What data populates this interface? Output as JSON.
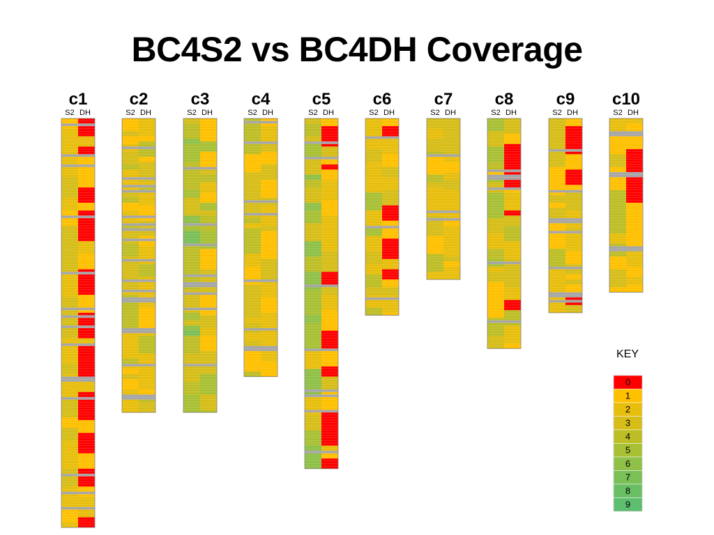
{
  "title": "BC4S2 vs BC4DH Coverage",
  "chart_data": {
    "type": "heatmap",
    "title": "BC4S2 vs BC4DH Coverage",
    "column_labels": [
      "S2",
      "DH"
    ],
    "missing_color": "#a6a6a6",
    "chromosomes": [
      {
        "name": "c1",
        "seed": 11,
        "rows": 160,
        "s2": [
          2,
          1,
          3,
          2
        ],
        "dh": [
          0,
          0,
          0,
          1,
          2,
          1,
          3
        ],
        "zero_prob": 0.15,
        "gap_prob": 0.1
      },
      {
        "name": "c2",
        "seed": 23,
        "rows": 115,
        "s2": [
          2,
          1,
          3,
          2,
          4
        ],
        "dh": [
          2,
          1,
          3,
          2,
          4
        ],
        "zero_prob": 0.02,
        "gap_prob": 0.08
      },
      {
        "name": "c3",
        "seed": 37,
        "rows": 115,
        "s2": [
          5,
          4,
          6,
          3,
          7
        ],
        "dh": [
          1,
          2,
          3,
          4,
          5
        ],
        "zero_prob": 0.0,
        "gap_prob": 0.07
      },
      {
        "name": "c4",
        "seed": 41,
        "rows": 101,
        "s2": [
          2,
          1,
          3,
          4
        ],
        "dh": [
          1,
          2,
          1,
          3
        ],
        "zero_prob": 0.05,
        "gap_prob": 0.08
      },
      {
        "name": "c5",
        "seed": 53,
        "rows": 137,
        "s2": [
          3,
          2,
          4,
          5,
          6
        ],
        "dh": [
          0,
          1,
          2,
          1,
          3
        ],
        "zero_prob": 0.08,
        "gap_prob": 0.08
      },
      {
        "name": "c6",
        "seed": 61,
        "rows": 77,
        "s2": [
          3,
          4,
          5,
          2
        ],
        "dh": [
          1,
          2,
          0,
          2,
          3
        ],
        "zero_prob": 0.1,
        "gap_prob": 0.09
      },
      {
        "name": "c7",
        "seed": 71,
        "rows": 63,
        "s2": [
          2,
          1,
          3,
          4
        ],
        "dh": [
          1,
          2,
          3,
          2
        ],
        "zero_prob": 0.02,
        "gap_prob": 0.08
      },
      {
        "name": "c8",
        "seed": 83,
        "rows": 90,
        "s2": [
          1,
          2,
          3,
          4,
          5
        ],
        "dh": [
          0,
          1,
          2,
          3,
          4
        ],
        "zero_prob": 0.1,
        "gap_prob": 0.09
      },
      {
        "name": "c9",
        "seed": 97,
        "rows": 76,
        "s2": [
          3,
          4,
          2,
          1
        ],
        "dh": [
          1,
          0,
          2,
          1,
          3
        ],
        "zero_prob": 0.12,
        "gap_prob": 0.09
      },
      {
        "name": "c10",
        "seed": 101,
        "rows": 68,
        "s2": [
          1,
          2,
          3,
          4
        ],
        "dh": [
          0,
          1,
          2,
          1
        ],
        "zero_prob": 0.18,
        "gap_prob": 0.09
      }
    ],
    "key": {
      "title": "KEY",
      "items": [
        {
          "value": "0",
          "color": "#ff0000"
        },
        {
          "value": "1",
          "color": "#ffc000"
        },
        {
          "value": "2",
          "color": "#e8be0c"
        },
        {
          "value": "3",
          "color": "#d6bd18"
        },
        {
          "value": "4",
          "color": "#bdbe26"
        },
        {
          "value": "5",
          "color": "#a8c034"
        },
        {
          "value": "6",
          "color": "#8fc047"
        },
        {
          "value": "7",
          "color": "#7bbf57"
        },
        {
          "value": "8",
          "color": "#6abf65"
        },
        {
          "value": "9",
          "color": "#5ebe70"
        }
      ]
    }
  }
}
